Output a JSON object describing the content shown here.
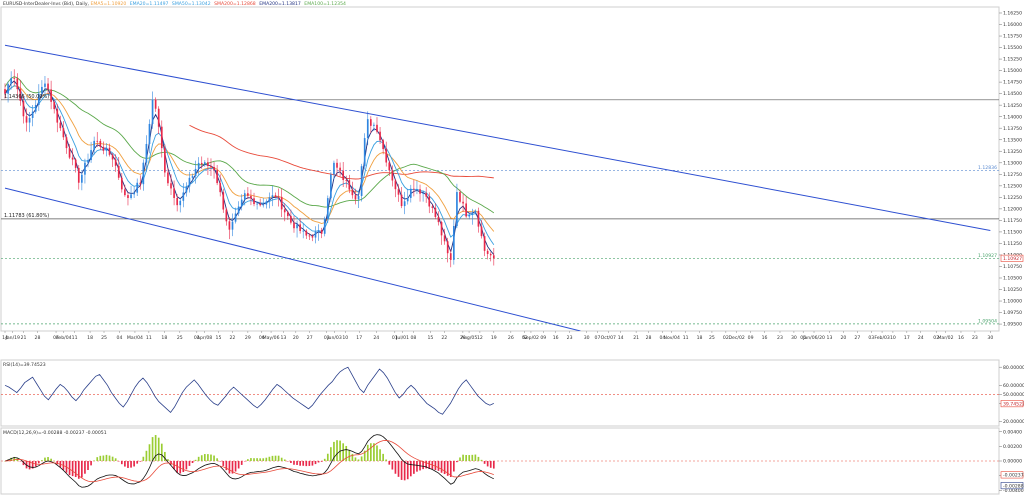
{
  "header": {
    "symbol": "EURUSD",
    "text": "EURUSD-InterDealer-Invs (Bid), Daily, ",
    "ema5": "EMA5=1.10920",
    "ema20": "EMA20=1.11497",
    "sma50": "SMA50=1.13042",
    "sma200": "SMA200=1.12868",
    "ema200": "EMA200=1.13817",
    "ema100": "EMA100=1.12354"
  },
  "chart_data": {
    "type": "candlestick",
    "price_axis_ticks": [
      "1.16250",
      "1.16000",
      "1.15750",
      "1.15500",
      "1.15250",
      "1.15000",
      "1.14750",
      "1.14500",
      "1.14250",
      "1.14000",
      "1.13750",
      "1.13500",
      "1.13250",
      "1.13000",
      "1.12750",
      "1.12500",
      "1.12250",
      "1.12000",
      "1.11750",
      "1.11500",
      "1.11250",
      "1.11000",
      "1.10750",
      "1.10500",
      "1.10250",
      "1.10000",
      "1.09750",
      "1.09500"
    ],
    "ylim": [
      1.0935,
      1.1638
    ],
    "date_axis_labels": [
      {
        "t": 0,
        "label": "14"
      },
      {
        "t": 5,
        "label": "Jan/19"
      },
      {
        "t": 12,
        "label": "21"
      },
      {
        "t": 21,
        "label": "28"
      },
      {
        "t": 33,
        "label": "04"
      },
      {
        "t": 38,
        "label": "Feb/04"
      },
      {
        "t": 45,
        "label": "11"
      },
      {
        "t": 55,
        "label": "18"
      },
      {
        "t": 64,
        "label": "25"
      },
      {
        "t": 74,
        "label": "04"
      },
      {
        "t": 84,
        "label": "Mar/04"
      },
      {
        "t": 93,
        "label": "11"
      },
      {
        "t": 103,
        "label": "18"
      },
      {
        "t": 113,
        "label": "25"
      },
      {
        "t": 124,
        "label": "01"
      },
      {
        "t": 129,
        "label": "Apr/08"
      },
      {
        "t": 138,
        "label": "15"
      },
      {
        "t": 147,
        "label": "22"
      },
      {
        "t": 157,
        "label": "29"
      },
      {
        "t": 166,
        "label": "06"
      },
      {
        "t": 172,
        "label": "May/06"
      },
      {
        "t": 180,
        "label": "13"
      },
      {
        "t": 188,
        "label": "20"
      },
      {
        "t": 197,
        "label": "27"
      },
      {
        "t": 208,
        "label": "03"
      },
      {
        "t": 213,
        "label": "Jun/03"
      },
      {
        "t": 220,
        "label": "10"
      },
      {
        "t": 229,
        "label": "17"
      },
      {
        "t": 240,
        "label": "24"
      },
      {
        "t": 252,
        "label": "01"
      },
      {
        "t": 257,
        "label": "Jul/01"
      },
      {
        "t": 264,
        "label": "08"
      },
      {
        "t": 275,
        "label": "15"
      },
      {
        "t": 284,
        "label": "22"
      },
      {
        "t": 296,
        "label": "29"
      },
      {
        "t": 300,
        "label": "Aug/05"
      },
      {
        "t": 307,
        "label": "12"
      },
      {
        "t": 316,
        "label": "19"
      },
      {
        "t": 327,
        "label": "26"
      },
      {
        "t": 336,
        "label": "02"
      },
      {
        "t": 340,
        "label": "Sep/02"
      },
      {
        "t": 348,
        "label": "09"
      },
      {
        "t": 356,
        "label": "16"
      },
      {
        "t": 365,
        "label": "23"
      },
      {
        "t": 376,
        "label": "30"
      },
      {
        "t": 383,
        "label": "07"
      },
      {
        "t": 390,
        "label": "Oct/07"
      },
      {
        "t": 398,
        "label": "14"
      },
      {
        "t": 408,
        "label": "21"
      },
      {
        "t": 416,
        "label": "28"
      },
      {
        "t": 425,
        "label": "04"
      },
      {
        "t": 431,
        "label": "Nov/04"
      },
      {
        "t": 440,
        "label": "11"
      },
      {
        "t": 449,
        "label": "18"
      },
      {
        "t": 457,
        "label": "25"
      },
      {
        "t": 466,
        "label": "02"
      },
      {
        "t": 473,
        "label": "Dec/02"
      },
      {
        "t": 482,
        "label": "09"
      },
      {
        "t": 491,
        "label": "16"
      },
      {
        "t": 501,
        "label": "23"
      },
      {
        "t": 510,
        "label": "30"
      },
      {
        "t": 516,
        "label": "06"
      },
      {
        "t": 523,
        "label": "Jan/06/20"
      },
      {
        "t": 533,
        "label": "13"
      },
      {
        "t": 542,
        "label": "20"
      },
      {
        "t": 551,
        "label": "27"
      },
      {
        "t": 560,
        "label": "03"
      },
      {
        "t": 567,
        "label": "Feb/03"
      },
      {
        "t": 574,
        "label": "10"
      },
      {
        "t": 583,
        "label": "17"
      },
      {
        "t": 592,
        "label": "24"
      },
      {
        "t": 602,
        "label": "02"
      },
      {
        "t": 608,
        "label": "Mar/02"
      },
      {
        "t": 618,
        "label": "16"
      },
      {
        "t": 627,
        "label": "23"
      },
      {
        "t": 637,
        "label": "30"
      }
    ],
    "candles_count": 160,
    "last_price": 1.10927,
    "key_points": [
      {
        "t": 0,
        "price": 1.145
      },
      {
        "t": 5,
        "price": 1.15
      },
      {
        "t": 14,
        "price": 1.138
      },
      {
        "t": 26,
        "price": 1.148
      },
      {
        "t": 33,
        "price": 1.14
      },
      {
        "t": 48,
        "price": 1.126
      },
      {
        "t": 58,
        "price": 1.135
      },
      {
        "t": 70,
        "price": 1.131
      },
      {
        "t": 78,
        "price": 1.122
      },
      {
        "t": 88,
        "price": 1.126
      },
      {
        "t": 96,
        "price": 1.145
      },
      {
        "t": 104,
        "price": 1.127
      },
      {
        "t": 112,
        "price": 1.121
      },
      {
        "t": 125,
        "price": 1.13
      },
      {
        "t": 135,
        "price": 1.129
      },
      {
        "t": 145,
        "price": 1.115
      },
      {
        "t": 155,
        "price": 1.123
      },
      {
        "t": 165,
        "price": 1.121
      },
      {
        "t": 175,
        "price": 1.123
      },
      {
        "t": 185,
        "price": 1.117
      },
      {
        "t": 195,
        "price": 1.114
      },
      {
        "t": 205,
        "price": 1.115
      },
      {
        "t": 212,
        "price": 1.13
      },
      {
        "t": 220,
        "price": 1.126
      },
      {
        "t": 228,
        "price": 1.122
      },
      {
        "t": 234,
        "price": 1.139
      },
      {
        "t": 240,
        "price": 1.138
      },
      {
        "t": 248,
        "price": 1.129
      },
      {
        "t": 256,
        "price": 1.121
      },
      {
        "t": 264,
        "price": 1.125
      },
      {
        "t": 272,
        "price": 1.123
      },
      {
        "t": 280,
        "price": 1.117
      },
      {
        "t": 288,
        "price": 1.108
      },
      {
        "t": 292,
        "price": 1.124
      },
      {
        "t": 298,
        "price": 1.119
      },
      {
        "t": 304,
        "price": 1.12
      },
      {
        "t": 310,
        "price": 1.111
      },
      {
        "t": 316,
        "price": 1.1093
      }
    ],
    "horizontal_levels": [
      {
        "name": "fib-50",
        "price": 1.14366,
        "label": "1.14366 (50.00%)",
        "color": "#555555",
        "dashed": false,
        "edge_label": ""
      },
      {
        "name": "fib-61-8",
        "price": 1.11783,
        "label": "1.11783 (61.80%)",
        "color": "#555555",
        "dashed": false,
        "edge_label": ""
      },
      {
        "name": "level-upper",
        "price": 1.12836,
        "label": "",
        "color": "#5a8ad0",
        "dashed": true,
        "edge_label": "1.12836"
      },
      {
        "name": "level-current",
        "price": 1.10927,
        "label": "",
        "color": "#4aa36c",
        "dashed": true,
        "edge_label": "1.10927"
      },
      {
        "name": "level-lower",
        "price": 1.09504,
        "label": "",
        "color": "#4aa36c",
        "dashed": true,
        "edge_label": "1.09504"
      }
    ],
    "trend_lines": [
      {
        "name": "channel-upper",
        "x1": 0,
        "y1": 1.1555,
        "x2": 637,
        "y2": 1.1153,
        "color": "#2d4fd1"
      },
      {
        "name": "channel-lower",
        "x1": 0,
        "y1": 1.1245,
        "x2": 372,
        "y2": 1.0935,
        "color": "#2d4fd1"
      }
    ],
    "moving_average_colors": {
      "ema200": "#e84a3a",
      "sma200": "#f0a040",
      "sma50": "#5aa84a",
      "ema20": "#3aa0e0",
      "ema5": "#203080"
    },
    "rsi": {
      "label": "RSI(14)=39.74523",
      "ticks": [
        "80.00000",
        "60.00000",
        "50.00000",
        "40.00000",
        "20.00000"
      ],
      "ylim": [
        15,
        88
      ],
      "level": 50,
      "current_value": "39.74523",
      "current_value_num": 39.74523,
      "values_sample": [
        60,
        58,
        55,
        52,
        57,
        63,
        66,
        69,
        62,
        55,
        48,
        44,
        50,
        56,
        61,
        58,
        53,
        47,
        43,
        48,
        55,
        60,
        65,
        70,
        72,
        66,
        60,
        52,
        46,
        40,
        36,
        42,
        50,
        58,
        64,
        68,
        63,
        56,
        48,
        42,
        38,
        34,
        30,
        36,
        44,
        52,
        58,
        62,
        66,
        61,
        55,
        49,
        44,
        40,
        38,
        43,
        48,
        54,
        58,
        54,
        50,
        46,
        42,
        38,
        35,
        39,
        44,
        50,
        56,
        61,
        58,
        54,
        50,
        46,
        43,
        40,
        37,
        34,
        38,
        44,
        50,
        55,
        60,
        64,
        70,
        75,
        78,
        80,
        72,
        64,
        56,
        52,
        60,
        66,
        72,
        78,
        74,
        68,
        60,
        52,
        46,
        50,
        56,
        60,
        56,
        50,
        45,
        40,
        37,
        34,
        30,
        28,
        34,
        40,
        48,
        56,
        62,
        66,
        60,
        54,
        48,
        44,
        40,
        38,
        40
      ]
    },
    "macd": {
      "label": "MACD(12,26,9)=-0.00288 -0.00237 -0.00051",
      "ticks": [
        "0.00400",
        "0.00200",
        "0.00000",
        "-0.00200",
        "-0.00400"
      ],
      "ylim": [
        -0.0045,
        0.0045
      ],
      "current_values": [
        "-0.00237",
        "-0.00288"
      ],
      "hist_pos_color": "#9acd32",
      "hist_neg_color": "#e8294a",
      "macd_color": "#111111",
      "signal_color": "#e84a3a"
    }
  }
}
